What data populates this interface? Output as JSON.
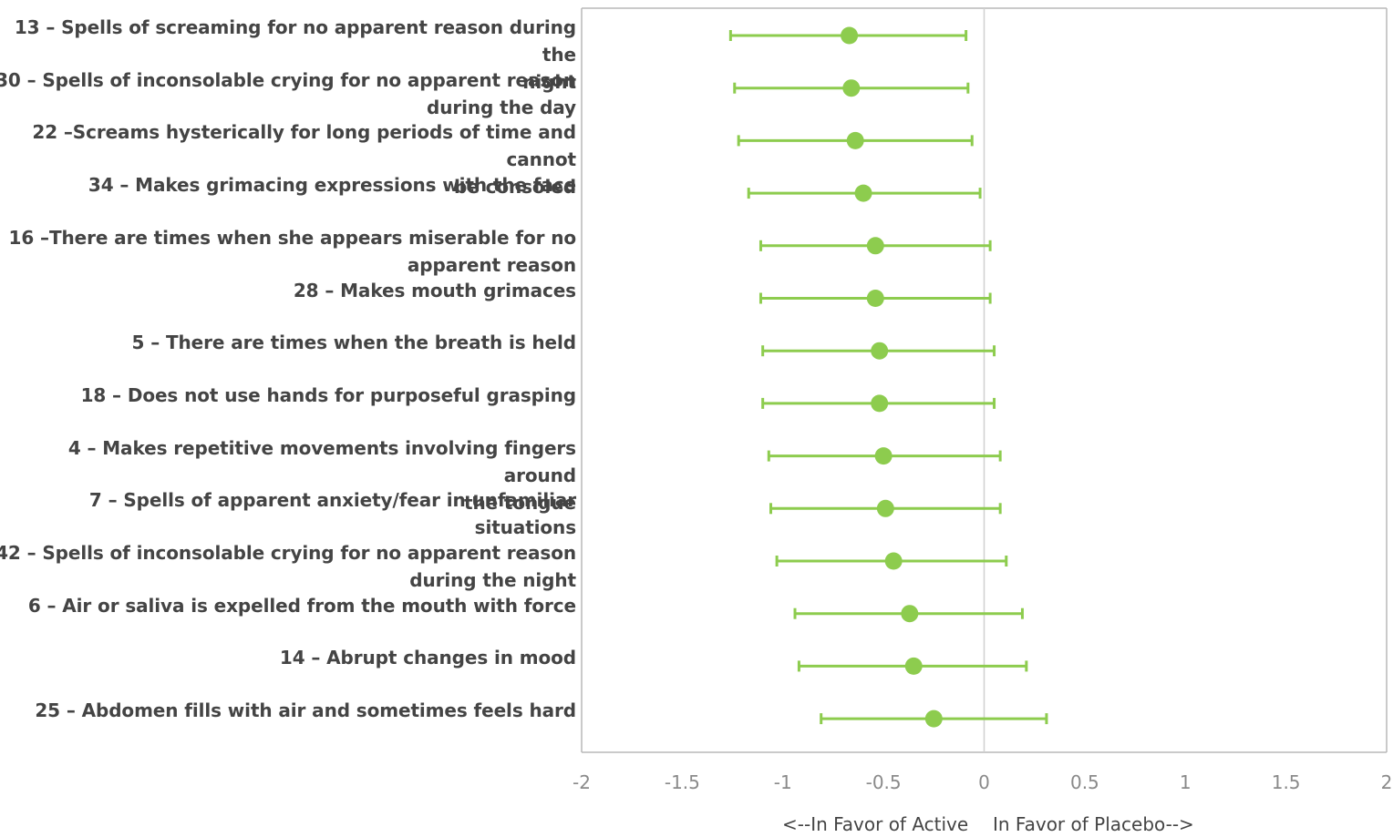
{
  "chart_data": {
    "type": "forest",
    "xlim": [
      -2,
      2
    ],
    "xticks": [
      "-2",
      "-1.5",
      "-1",
      "-0.5",
      "0",
      "0.5",
      "1",
      "1.5",
      "2"
    ],
    "xtick_values": [
      -2,
      -1.5,
      -1,
      -0.5,
      0,
      0.5,
      1,
      1.5,
      2
    ],
    "reference_line": 0,
    "left_direction_label": "<--In Favor of Active",
    "right_direction_label": "In Favor of Placebo-->",
    "series_color": "#8dcc4e",
    "reference_color": "#d0d0d0",
    "grid": false,
    "rows": [
      {
        "label": "13 – Spells of screaming for no apparent reason during the\nnight",
        "estimate": -0.67,
        "lower": -1.26,
        "upper": -0.09
      },
      {
        "label": "30 – Spells of inconsolable crying for no apparent reason\nduring the day",
        "estimate": -0.66,
        "lower": -1.24,
        "upper": -0.08
      },
      {
        "label": "22 –Screams hysterically for long periods of time and cannot\nbe consoled",
        "estimate": -0.64,
        "lower": -1.22,
        "upper": -0.06
      },
      {
        "label": "34 – Makes grimacing expressions with the face",
        "estimate": -0.6,
        "lower": -1.17,
        "upper": -0.02
      },
      {
        "label": "16 –There are times when she appears miserable for no\napparent reason",
        "estimate": -0.54,
        "lower": -1.11,
        "upper": 0.03
      },
      {
        "label": "28 – Makes mouth grimaces",
        "estimate": -0.54,
        "lower": -1.11,
        "upper": 0.03
      },
      {
        "label": "5 – There are times when the breath is held",
        "estimate": -0.52,
        "lower": -1.1,
        "upper": 0.05
      },
      {
        "label": "18 – Does not use hands for purposeful grasping",
        "estimate": -0.52,
        "lower": -1.1,
        "upper": 0.05
      },
      {
        "label": "4 – Makes repetitive movements involving fingers around\nthe tongue",
        "estimate": -0.5,
        "lower": -1.07,
        "upper": 0.08
      },
      {
        "label": "7 – Spells of apparent anxiety/fear in unfamiliar situations",
        "estimate": -0.49,
        "lower": -1.06,
        "upper": 0.08
      },
      {
        "label": "42 – Spells of inconsolable crying for no apparent reason\nduring the night",
        "estimate": -0.45,
        "lower": -1.03,
        "upper": 0.11
      },
      {
        "label": "6 – Air or saliva is expelled from the mouth with force",
        "estimate": -0.37,
        "lower": -0.94,
        "upper": 0.19
      },
      {
        "label": "14 – Abrupt changes in mood",
        "estimate": -0.35,
        "lower": -0.92,
        "upper": 0.21
      },
      {
        "label": "25 – Abdomen fills with air and sometimes feels hard",
        "estimate": -0.25,
        "lower": -0.81,
        "upper": 0.31
      }
    ]
  }
}
